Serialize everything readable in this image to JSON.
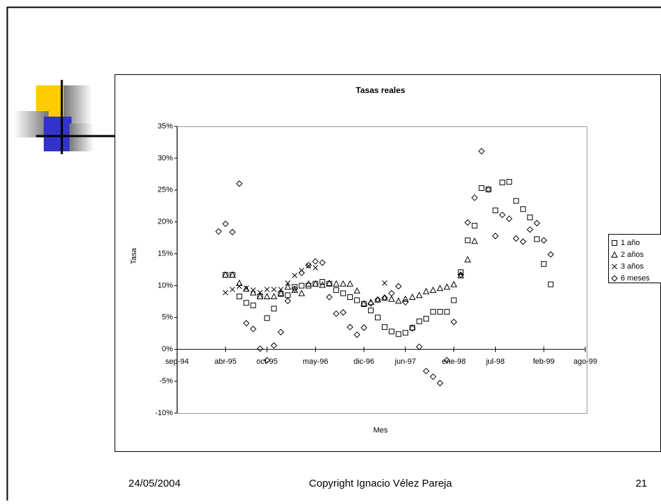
{
  "chart_data": {
    "type": "scatter",
    "title": "Tasas reales",
    "x_label": "Mes",
    "y_label": "Tasa",
    "x": [
      "1995-03",
      "1995-04",
      "1995-05",
      "1995-06",
      "1995-07",
      "1995-08",
      "1995-09",
      "1995-10",
      "1995-11",
      "1995-12",
      "1996-01",
      "1996-02",
      "1996-03",
      "1996-04",
      "1996-05",
      "1996-06",
      "1996-07",
      "1996-08",
      "1996-09",
      "1996-10",
      "1996-11",
      "1996-12",
      "1997-01",
      "1997-02",
      "1997-03",
      "1997-04",
      "1997-05",
      "1997-06",
      "1997-07",
      "1997-08",
      "1997-09",
      "1997-10",
      "1997-11",
      "1997-12",
      "1998-01",
      "1998-02",
      "1998-03",
      "1998-04",
      "1998-05",
      "1998-06",
      "1998-07",
      "1998-08",
      "1998-09",
      "1998-10",
      "1998-11",
      "1998-12",
      "1999-01",
      "1999-02",
      "1999-03"
    ],
    "xlim": [
      "1994-09",
      "1999-08"
    ],
    "xticks": [
      {
        "value": "1994-09",
        "label": "sep-94"
      },
      {
        "value": "1995-04",
        "label": "abr-95"
      },
      {
        "value": "1995-10",
        "label": "oct-95"
      },
      {
        "value": "1996-05",
        "label": "may-96"
      },
      {
        "value": "1996-12",
        "label": "dic-96"
      },
      {
        "value": "1997-06",
        "label": "jun-97"
      },
      {
        "value": "1998-01",
        "label": "ene-98"
      },
      {
        "value": "1998-07",
        "label": "jul-98"
      },
      {
        "value": "1999-02",
        "label": "feb-99"
      },
      {
        "value": "1999-08",
        "label": "ago-99"
      }
    ],
    "ylim": [
      -10,
      35
    ],
    "yticks": [
      {
        "value": -10,
        "label": "-10%"
      },
      {
        "value": -5,
        "label": "-5%"
      },
      {
        "value": 0,
        "label": "0%"
      },
      {
        "value": 5,
        "label": "5%"
      },
      {
        "value": 10,
        "label": "10%"
      },
      {
        "value": 15,
        "label": "15%"
      },
      {
        "value": 20,
        "label": "20%"
      },
      {
        "value": 25,
        "label": "25%"
      },
      {
        "value": 30,
        "label": "30%"
      },
      {
        "value": 35,
        "label": "35%"
      }
    ],
    "legend": "right",
    "series": [
      {
        "name": "1 año",
        "marker": "square",
        "color": "#000000",
        "values": [
          null,
          11.7,
          11.7,
          8.3,
          7.3,
          6.9,
          8.3,
          4.9,
          6.4,
          8.7,
          8.5,
          9.8,
          10,
          10,
          10.3,
          10.6,
          10.3,
          9.3,
          8.8,
          8.2,
          7.7,
          7.1,
          6.1,
          5,
          3.5,
          2.8,
          2.4,
          2.6,
          3.4,
          4.4,
          4.8,
          5.9,
          5.9,
          5.9,
          7.7,
          12.1,
          17.1,
          19.4,
          25.3,
          25.1,
          21.8,
          26.2,
          26.3,
          23.3,
          22,
          20.7,
          17.3,
          13.4,
          10.2
        ]
      },
      {
        "name": "2 años",
        "marker": "triangle",
        "color": "#000000",
        "values": [
          null,
          11.7,
          11.7,
          10.4,
          9.5,
          8.9,
          8.3,
          8.3,
          8.3,
          8.8,
          9.8,
          9.3,
          8.8,
          10.3,
          10.3,
          10.1,
          10.4,
          10.3,
          10.3,
          10.3,
          9.2,
          7.2,
          7.4,
          7.8,
          8.1,
          7.9,
          7.6,
          7.9,
          8.2,
          8.5,
          9.1,
          9.3,
          9.6,
          9.8,
          10.2,
          11.6,
          14.1,
          17.0,
          null,
          null,
          null,
          null,
          null,
          null,
          null,
          null,
          null,
          null,
          null
        ]
      },
      {
        "name": "3 años",
        "marker": "x",
        "color": "#000000",
        "values": [
          null,
          8.9,
          9.4,
          9.9,
          9.6,
          9.3,
          8.9,
          9.4,
          9.4,
          9.4,
          10.4,
          11.6,
          12.4,
          13.1,
          12.8,
          null,
          null,
          null,
          null,
          null,
          null,
          null,
          null,
          null,
          10.4,
          null,
          null,
          null,
          null,
          null,
          null,
          null,
          null,
          null,
          null,
          null,
          null,
          null,
          null,
          null,
          null,
          null,
          null,
          null,
          null,
          null,
          null,
          null,
          null
        ]
      },
      {
        "name": "6 meses",
        "marker": "diamond",
        "color": "#000000",
        "values": [
          18.5,
          19.7,
          18.4,
          26,
          4.1,
          3.2,
          0.1,
          -1.7,
          0.6,
          2.7,
          7.6,
          9.5,
          12,
          13.2,
          13.8,
          13.6,
          8.2,
          5.6,
          5.8,
          3.5,
          2.3,
          3.4,
          7.2,
          7.8,
          8.1,
          8.8,
          9.9,
          7.4,
          3.3,
          0.4,
          -3.4,
          -4.3,
          -5.3,
          -1.7,
          4.3,
          11.7,
          19.9,
          23.8,
          31.1,
          25.1,
          17.8,
          21.1,
          20.5,
          17.4,
          16.9,
          18.8,
          19.8,
          17.1,
          14.9
        ]
      }
    ]
  },
  "footer": {
    "date": "24/05/2004",
    "copyright": "Copyright Ignacio Vélez Pareja",
    "page": "21"
  }
}
